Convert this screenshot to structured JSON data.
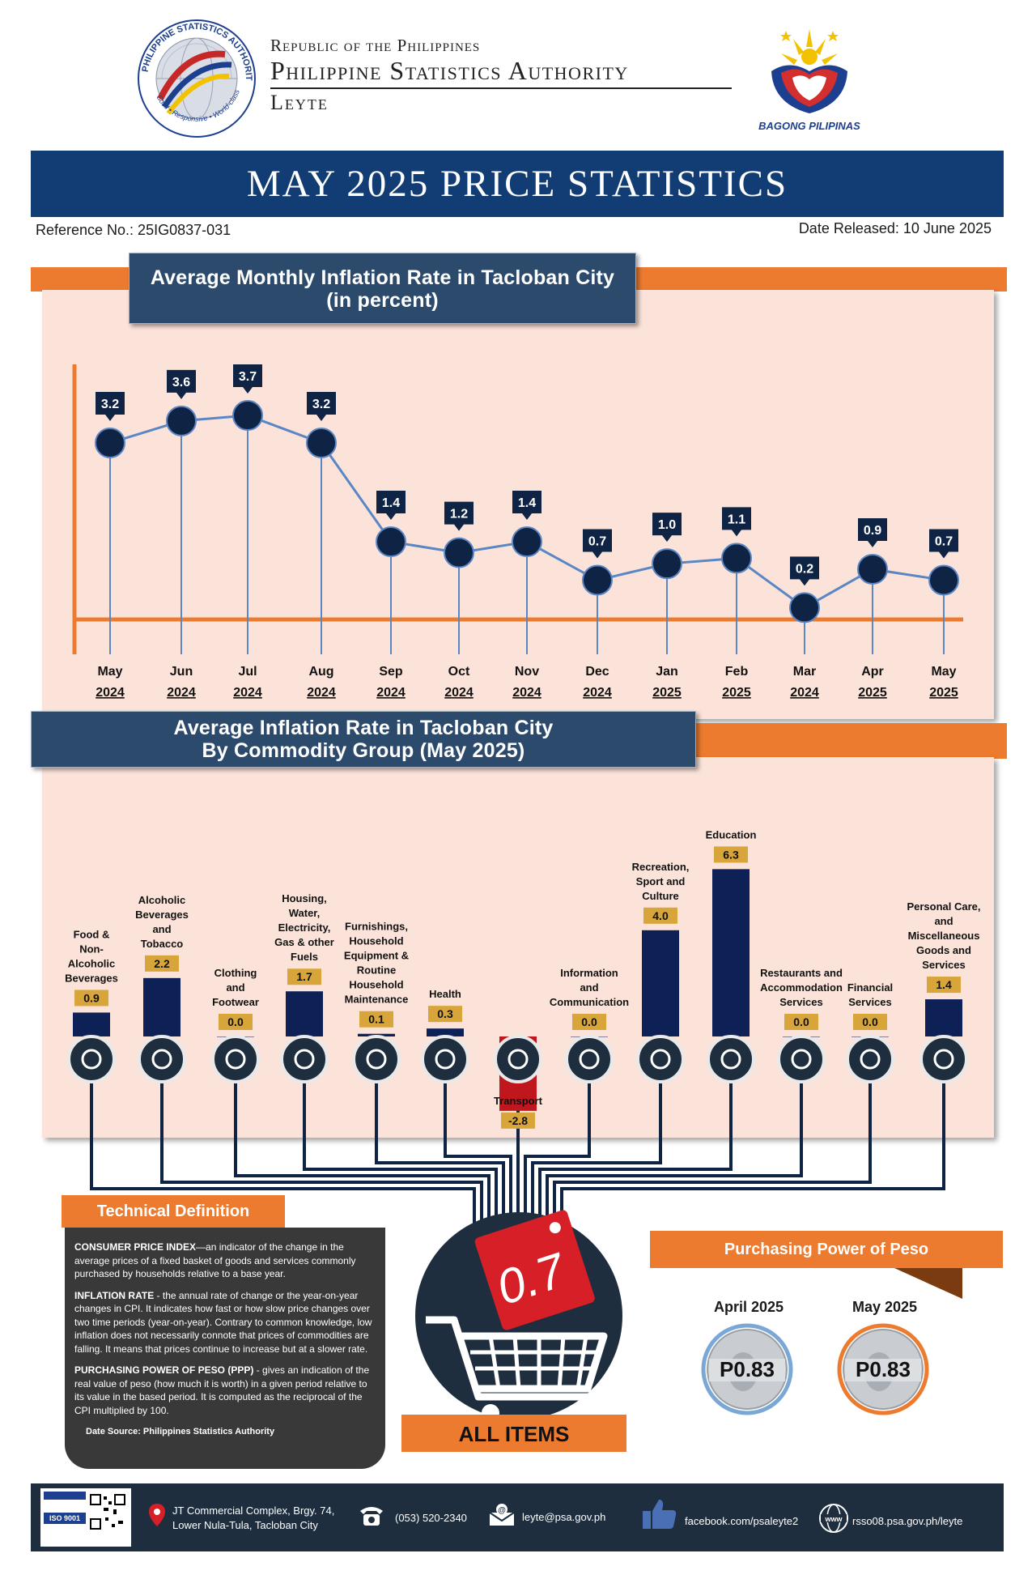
{
  "header": {
    "seal_text_top": "PHILIPPINE STATISTICS AUTHORITY",
    "seal_text_bottom": "Solid • Responsive • World-class",
    "line1": "Republic of the Philippines",
    "line2": "Philippine Statistics Authority",
    "line3": "Leyte",
    "bagong_pilipinas": "BAGONG PILIPINAS"
  },
  "banner_title": "MAY 2025 PRICE STATISTICS",
  "reference": "Reference No.: 25IG0837-031",
  "date_released": "Date Released: 10 June 2025",
  "monthly_chart": {
    "title_line1": "Average Monthly Inflation Rate in Tacloban City",
    "title_line2": "(in percent)",
    "chart_data": {
      "type": "line",
      "x": [
        "May 2024",
        "Jun 2024",
        "Jul 2024",
        "Aug 2024",
        "Sep 2024",
        "Oct 2024",
        "Nov 2024",
        "Dec 2024",
        "Jan 2025",
        "Feb 2025",
        "Mar 2024",
        "Apr 2025",
        "May 2025"
      ],
      "months": [
        "May",
        "Jun",
        "Jul",
        "Aug",
        "Sep",
        "Oct",
        "Nov",
        "Dec",
        "Jan",
        "Feb",
        "Mar",
        "Apr",
        "May"
      ],
      "years": [
        "2024",
        "2024",
        "2024",
        "2024",
        "2024",
        "2024",
        "2024",
        "2024",
        "2025",
        "2025",
        "2024",
        "2025",
        "2025"
      ],
      "values": [
        3.2,
        3.6,
        3.7,
        3.2,
        1.4,
        1.2,
        1.4,
        0.7,
        1.0,
        1.1,
        0.2,
        0.9,
        0.7
      ],
      "labels": [
        "3.2",
        "3.6",
        "3.7",
        "3.2",
        "1.4",
        "1.2",
        "1.4",
        "0.7",
        "1.0",
        "1.1",
        "0.2",
        "0.9",
        "0.7"
      ],
      "ylim": [
        0,
        4.6
      ]
    }
  },
  "commodity_chart": {
    "title_line1": "Average Inflation Rate in Tacloban City",
    "title_line2": "By Commodity Group (May 2025)",
    "chart_data": {
      "type": "bar",
      "categories": [
        [
          "Food &",
          "Non-",
          "Alcoholic",
          "Beverages"
        ],
        [
          "Alcoholic",
          "Beverages",
          "and",
          "Tobacco"
        ],
        [
          "Clothing",
          "and",
          "Footwear"
        ],
        [
          "Housing,",
          "Water,",
          "Electricity,",
          "Gas & other",
          "Fuels"
        ],
        [
          "Furnishings,",
          "Household",
          "Equipment &",
          "Routine",
          "Household",
          "Maintenance"
        ],
        [
          "Health"
        ],
        [
          "Transport"
        ],
        [
          "Information",
          "and",
          "Communication"
        ],
        [
          "Recreation,",
          "Sport and",
          "Culture"
        ],
        [
          "Education"
        ],
        [
          "Restaurants and",
          "Accommodation",
          "Services"
        ],
        [
          "Financial",
          "Services"
        ],
        [
          "Personal Care,",
          "and",
          "Miscellaneous",
          "Goods and",
          "Services"
        ]
      ],
      "values": [
        0.9,
        2.2,
        0.0,
        1.7,
        0.1,
        0.3,
        -2.8,
        0.0,
        4.0,
        6.3,
        0.0,
        0.0,
        1.4
      ],
      "labels": [
        "0.9",
        "2.2",
        "0.0",
        "1.7",
        "0.1",
        "0.3",
        "-2.8",
        "0.0",
        "4.0",
        "6.3",
        "0.0",
        "0.0",
        "1.4"
      ],
      "icons": [
        "food-icon",
        "bottle-cigarette-icon",
        "clothing-icon",
        "house-utilities-icon",
        "furniture-icon",
        "health-icon",
        "vehicles-icon",
        "smartphone-icon",
        "theater-masks-icon",
        "graduation-cap-icon",
        "dining-icon",
        "money-icon",
        "personal-care-icon"
      ],
      "colors": {
        "positive": "#0d2156",
        "negative": "#c0171e",
        "label_bg": "#d8a53a"
      }
    }
  },
  "all_items": {
    "value": "0.7",
    "label": "ALL ITEMS"
  },
  "technical_definition": {
    "heading": "Technical Definition",
    "cpi_term": "CONSUMER PRICE INDEX",
    "cpi_text": "—an indicator of the change in the average prices of a fixed basket of goods and services commonly purchased by households relative to a base year.",
    "inflation_term": "INFLATION RATE",
    "inflation_text": " - the annual rate of change or the year-on-year changes in CPI. It indicates how fast or how slow price changes over two time periods (year-on-year). Contrary to common knowledge, low inflation does not necessarily connote that prices of commodities are falling. It means that prices continue to increase but at a slower rate.",
    "ppp_term": "PURCHASING POWER OF PESO (PPP)",
    "ppp_text": " - gives an indication of the real value of peso (how much it is worth) in a given period relative to its value in the based period. It is computed as the reciprocal of the CPI multiplied by 100.",
    "source": "Date Source: Philippines Statistics Authority"
  },
  "purchasing_power": {
    "heading": "Purchasing Power of Peso",
    "items": [
      {
        "label": "April 2025",
        "value": "P0.83",
        "ring": "#7aa7d6"
      },
      {
        "label": "May 2025",
        "value": "P0.83",
        "ring": "#ec7b2f"
      }
    ]
  },
  "footer": {
    "iso": "ISO 9001",
    "address_line1": "JT Commercial Complex, Brgy. 74,",
    "address_line2": "Lower Nula-Tula, Tacloban City",
    "phone": "(053) 520-2340",
    "email": "leyte@psa.gov.ph",
    "facebook": "facebook.com/psaleyte2",
    "website": "rsso08.psa.gov.ph/leyte"
  }
}
